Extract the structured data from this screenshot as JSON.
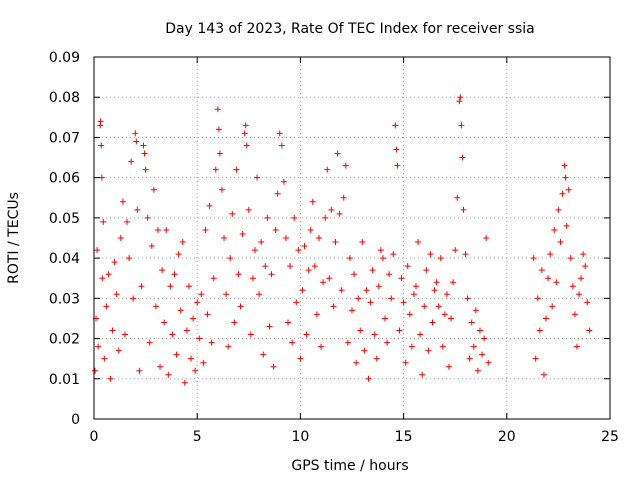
{
  "chart_data": {
    "type": "scatter",
    "title": "Day 143 of 2023, Rate Of TEC Index for receiver ssia",
    "xlabel": "GPS time / hours",
    "ylabel": "ROTI / TECUs",
    "xlim": [
      0,
      25
    ],
    "ylim": [
      0,
      0.09
    ],
    "x_ticks": [
      "0",
      "5",
      "10",
      "15",
      "20",
      "25"
    ],
    "x_tick_values": [
      0,
      5,
      10,
      15,
      20,
      25
    ],
    "y_ticks": [
      "0",
      "0.01",
      "0.02",
      "0.03",
      "0.04",
      "0.05",
      "0.06",
      "0.07",
      "0.08",
      "0.09"
    ],
    "y_tick_values": [
      0,
      0.01,
      0.02,
      0.03,
      0.04,
      0.05,
      0.06,
      0.07,
      0.08,
      0.09
    ],
    "grid": true,
    "marker": "+",
    "color": "#ff0000",
    "data_gap_hours": [
      19.2,
      21.3
    ],
    "series": [
      {
        "values": [
          [
            0.05,
            0.012
          ],
          [
            0.1,
            0.025
          ],
          [
            0.15,
            0.042
          ],
          [
            0.2,
            0.018
          ],
          [
            0.3,
            0.073
          ],
          [
            0.32,
            0.074
          ],
          [
            0.35,
            0.068
          ],
          [
            0.38,
            0.06
          ],
          [
            0.4,
            0.035
          ],
          [
            0.45,
            0.049
          ],
          [
            0.5,
            0.015
          ],
          [
            0.6,
            0.028
          ],
          [
            0.7,
            0.036
          ],
          [
            0.8,
            0.01
          ],
          [
            0.9,
            0.022
          ],
          [
            1.0,
            0.039
          ],
          [
            1.1,
            0.031
          ],
          [
            1.2,
            0.017
          ],
          [
            1.3,
            0.045
          ],
          [
            1.4,
            0.054
          ],
          [
            1.5,
            0.021
          ],
          [
            1.6,
            0.049
          ],
          [
            1.7,
            0.04
          ],
          [
            1.8,
            0.064
          ],
          [
            1.9,
            0.03
          ],
          [
            2.0,
            0.071
          ],
          [
            2.05,
            0.069
          ],
          [
            2.1,
            0.052
          ],
          [
            2.2,
            0.012
          ],
          [
            2.3,
            0.033
          ],
          [
            2.4,
            0.068
          ],
          [
            2.45,
            0.066
          ],
          [
            2.5,
            0.062
          ],
          [
            2.6,
            0.05
          ],
          [
            2.7,
            0.019
          ],
          [
            2.8,
            0.043
          ],
          [
            2.9,
            0.057
          ],
          [
            3.0,
            0.028
          ],
          [
            3.1,
            0.047
          ],
          [
            3.2,
            0.013
          ],
          [
            3.3,
            0.037
          ],
          [
            3.4,
            0.024
          ],
          [
            3.5,
            0.047
          ],
          [
            3.6,
            0.011
          ],
          [
            3.7,
            0.033
          ],
          [
            3.8,
            0.021
          ],
          [
            3.9,
            0.036
          ],
          [
            4.0,
            0.016
          ],
          [
            4.1,
            0.041
          ],
          [
            4.2,
            0.027
          ],
          [
            4.3,
            0.044
          ],
          [
            4.4,
            0.009
          ],
          [
            4.5,
            0.022
          ],
          [
            4.6,
            0.033
          ],
          [
            4.7,
            0.015
          ],
          [
            4.8,
            0.025
          ],
          [
            4.9,
            0.012
          ],
          [
            5.0,
            0.029
          ],
          [
            5.1,
            0.02
          ],
          [
            5.2,
            0.031
          ],
          [
            5.3,
            0.014
          ],
          [
            5.4,
            0.047
          ],
          [
            5.5,
            0.026
          ],
          [
            5.6,
            0.053
          ],
          [
            5.7,
            0.019
          ],
          [
            5.8,
            0.035
          ],
          [
            5.9,
            0.062
          ],
          [
            6.0,
            0.077
          ],
          [
            6.05,
            0.072
          ],
          [
            6.1,
            0.066
          ],
          [
            6.2,
            0.057
          ],
          [
            6.3,
            0.045
          ],
          [
            6.4,
            0.031
          ],
          [
            6.5,
            0.018
          ],
          [
            6.6,
            0.04
          ],
          [
            6.7,
            0.051
          ],
          [
            6.8,
            0.024
          ],
          [
            6.9,
            0.062
          ],
          [
            7.0,
            0.036
          ],
          [
            7.1,
            0.028
          ],
          [
            7.2,
            0.046
          ],
          [
            7.3,
            0.071
          ],
          [
            7.35,
            0.073
          ],
          [
            7.4,
            0.068
          ],
          [
            7.5,
            0.052
          ],
          [
            7.6,
            0.021
          ],
          [
            7.7,
            0.035
          ],
          [
            7.8,
            0.042
          ],
          [
            7.9,
            0.06
          ],
          [
            8.0,
            0.031
          ],
          [
            8.1,
            0.044
          ],
          [
            8.2,
            0.016
          ],
          [
            8.3,
            0.038
          ],
          [
            8.4,
            0.05
          ],
          [
            8.5,
            0.023
          ],
          [
            8.6,
            0.036
          ],
          [
            8.7,
            0.013
          ],
          [
            8.8,
            0.047
          ],
          [
            8.9,
            0.056
          ],
          [
            9.0,
            0.071
          ],
          [
            9.1,
            0.068
          ],
          [
            9.2,
            0.059
          ],
          [
            9.3,
            0.045
          ],
          [
            9.4,
            0.024
          ],
          [
            9.5,
            0.038
          ],
          [
            9.6,
            0.019
          ],
          [
            9.7,
            0.05
          ],
          [
            9.8,
            0.029
          ],
          [
            9.9,
            0.042
          ],
          [
            10.0,
            0.015
          ],
          [
            10.1,
            0.032
          ],
          [
            10.2,
            0.043
          ],
          [
            10.3,
            0.021
          ],
          [
            10.4,
            0.037
          ],
          [
            10.5,
            0.047
          ],
          [
            10.6,
            0.054
          ],
          [
            10.7,
            0.038
          ],
          [
            10.8,
            0.026
          ],
          [
            10.9,
            0.045
          ],
          [
            11.0,
            0.018
          ],
          [
            11.1,
            0.034
          ],
          [
            11.2,
            0.05
          ],
          [
            11.3,
            0.062
          ],
          [
            11.4,
            0.035
          ],
          [
            11.5,
            0.052
          ],
          [
            11.6,
            0.028
          ],
          [
            11.7,
            0.044
          ],
          [
            11.8,
            0.066
          ],
          [
            11.9,
            0.051
          ],
          [
            12.0,
            0.032
          ],
          [
            12.1,
            0.055
          ],
          [
            12.2,
            0.063
          ],
          [
            12.3,
            0.019
          ],
          [
            12.4,
            0.04
          ],
          [
            12.5,
            0.027
          ],
          [
            12.6,
            0.036
          ],
          [
            12.7,
            0.014
          ],
          [
            12.8,
            0.03
          ],
          [
            12.9,
            0.022
          ],
          [
            13.0,
            0.044
          ],
          [
            13.1,
            0.017
          ],
          [
            13.2,
            0.032
          ],
          [
            13.3,
            0.01
          ],
          [
            13.4,
            0.029
          ],
          [
            13.5,
            0.037
          ],
          [
            13.6,
            0.021
          ],
          [
            13.7,
            0.015
          ],
          [
            13.8,
            0.033
          ],
          [
            13.9,
            0.042
          ],
          [
            14.0,
            0.04
          ],
          [
            14.1,
            0.025
          ],
          [
            14.2,
            0.019
          ],
          [
            14.3,
            0.036
          ],
          [
            14.4,
            0.03
          ],
          [
            14.5,
            0.041
          ],
          [
            14.6,
            0.073
          ],
          [
            14.65,
            0.067
          ],
          [
            14.7,
            0.063
          ],
          [
            14.8,
            0.022
          ],
          [
            14.9,
            0.035
          ],
          [
            15.0,
            0.029
          ],
          [
            15.1,
            0.014
          ],
          [
            15.2,
            0.038
          ],
          [
            15.3,
            0.026
          ],
          [
            15.4,
            0.018
          ],
          [
            15.5,
            0.031
          ],
          [
            15.6,
            0.033
          ],
          [
            15.7,
            0.044
          ],
          [
            15.8,
            0.021
          ],
          [
            15.9,
            0.011
          ],
          [
            16.0,
            0.028
          ],
          [
            16.1,
            0.037
          ],
          [
            16.2,
            0.017
          ],
          [
            16.3,
            0.041
          ],
          [
            16.4,
            0.024
          ],
          [
            16.5,
            0.032
          ],
          [
            16.6,
            0.034
          ],
          [
            16.7,
            0.028
          ],
          [
            16.8,
            0.04
          ],
          [
            16.9,
            0.018
          ],
          [
            17.0,
            0.026
          ],
          [
            17.1,
            0.031
          ],
          [
            17.2,
            0.013
          ],
          [
            17.3,
            0.025
          ],
          [
            17.4,
            0.034
          ],
          [
            17.5,
            0.042
          ],
          [
            17.6,
            0.055
          ],
          [
            17.7,
            0.079
          ],
          [
            17.75,
            0.08
          ],
          [
            17.8,
            0.073
          ],
          [
            17.85,
            0.065
          ],
          [
            17.9,
            0.052
          ],
          [
            18.0,
            0.041
          ],
          [
            18.1,
            0.03
          ],
          [
            18.2,
            0.015
          ],
          [
            18.3,
            0.024
          ],
          [
            18.4,
            0.018
          ],
          [
            18.5,
            0.027
          ],
          [
            18.6,
            0.012
          ],
          [
            18.7,
            0.022
          ],
          [
            18.8,
            0.016
          ],
          [
            18.9,
            0.02
          ],
          [
            19.0,
            0.045
          ],
          [
            19.1,
            0.014
          ],
          [
            21.3,
            0.04
          ],
          [
            21.4,
            0.015
          ],
          [
            21.5,
            0.03
          ],
          [
            21.6,
            0.022
          ],
          [
            21.7,
            0.037
          ],
          [
            21.8,
            0.011
          ],
          [
            21.9,
            0.025
          ],
          [
            22.0,
            0.035
          ],
          [
            22.1,
            0.041
          ],
          [
            22.2,
            0.028
          ],
          [
            22.3,
            0.047
          ],
          [
            22.4,
            0.034
          ],
          [
            22.5,
            0.052
          ],
          [
            22.6,
            0.044
          ],
          [
            22.7,
            0.056
          ],
          [
            22.8,
            0.063
          ],
          [
            22.85,
            0.06
          ],
          [
            22.9,
            0.048
          ],
          [
            23.0,
            0.057
          ],
          [
            23.1,
            0.04
          ],
          [
            23.2,
            0.033
          ],
          [
            23.3,
            0.026
          ],
          [
            23.4,
            0.018
          ],
          [
            23.5,
            0.031
          ],
          [
            23.6,
            0.035
          ],
          [
            23.7,
            0.041
          ],
          [
            23.8,
            0.038
          ],
          [
            23.9,
            0.029
          ],
          [
            24.0,
            0.022
          ]
        ]
      }
    ]
  }
}
